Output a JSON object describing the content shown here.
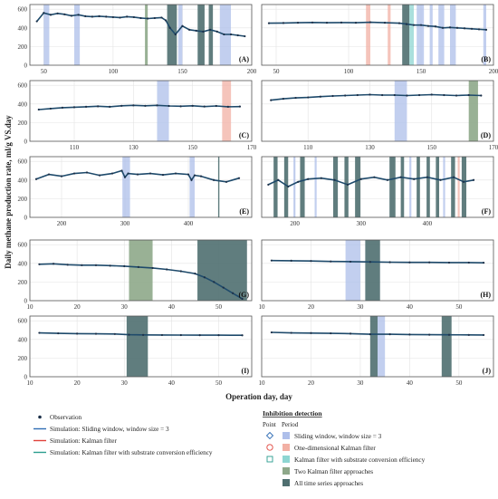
{
  "figure": {
    "ylabel": "Daily methane production rate, ml/g VS.day",
    "xlabel": "Operation day, day",
    "colors": {
      "observation": "#1b2f48",
      "sliding": "#2f6db5",
      "kalman": "#e0423a",
      "substrate": "#2a9d8f",
      "band_sliding": "#aebfea",
      "band_kalman": "#f2b0a4",
      "band_substrate": "#8ed6d2",
      "band_two": "#8ea88a",
      "band_all": "#4f6f70",
      "curve": "#1e4a6b",
      "grid": "#e3e3e3"
    }
  },
  "legend_left": [
    {
      "id": "observation",
      "label": "Observation"
    },
    {
      "id": "sliding",
      "label": "Simulation: Sliding window, window size = 3"
    },
    {
      "id": "kalman",
      "label": "Simulation: Kalman filter"
    },
    {
      "id": "substrate",
      "label": "Simulation: Kalman filter with substrate conversion efficiency"
    }
  ],
  "legend_right": {
    "title": "Inhibition detection",
    "col_point": "Point",
    "col_period": "Period",
    "rows": [
      {
        "id": "sliding",
        "label": "Sliding window, window size = 3",
        "marker": "diamond"
      },
      {
        "id": "kalman",
        "label": "One-dimensional Kalman filter",
        "marker": "circle"
      },
      {
        "id": "substrate",
        "label": "Kalman filter with substrate conversion efficiency",
        "marker": "square"
      },
      {
        "id": "two",
        "label": "Two Kalman filter approaches"
      },
      {
        "id": "all",
        "label": "All time series approaches"
      }
    ]
  },
  "chart_data": [
    {
      "type": "line",
      "panel": "A",
      "xlim": [
        40,
        200
      ],
      "ylim": [
        0,
        650
      ],
      "xticks": [
        50,
        100,
        150,
        200
      ],
      "yticks": [
        0,
        200,
        400,
        600
      ],
      "x": [
        45,
        50,
        55,
        60,
        65,
        70,
        75,
        80,
        85,
        90,
        95,
        100,
        105,
        110,
        115,
        120,
        125,
        130,
        135,
        138,
        141,
        145,
        150,
        155,
        160,
        165,
        170,
        175,
        180,
        185,
        190,
        195
      ],
      "series": [
        {
          "values": [
            470,
            560,
            540,
            555,
            545,
            530,
            540,
            525,
            520,
            525,
            520,
            515,
            510,
            520,
            515,
            505,
            500,
            505,
            510,
            480,
            400,
            330,
            420,
            380,
            370,
            360,
            380,
            360,
            330,
            330,
            320,
            310
          ]
        }
      ],
      "bands": [
        {
          "x0": 50,
          "x1": 54,
          "kind": "sliding"
        },
        {
          "x0": 72,
          "x1": 76,
          "kind": "sliding"
        },
        {
          "x0": 123,
          "x1": 125,
          "kind": "two"
        },
        {
          "x0": 139,
          "x1": 146,
          "kind": "all"
        },
        {
          "x0": 147,
          "x1": 150,
          "kind": "sliding"
        },
        {
          "x0": 161,
          "x1": 166,
          "kind": "all"
        },
        {
          "x0": 169,
          "x1": 172,
          "kind": "all"
        },
        {
          "x0": 177,
          "x1": 185,
          "kind": "sliding"
        }
      ]
    },
    {
      "type": "line",
      "panel": "B",
      "xlim": [
        40,
        200
      ],
      "ylim": [
        0,
        650
      ],
      "xticks": [
        50,
        100,
        150,
        200
      ],
      "yticks": [
        0,
        200,
        400,
        600
      ],
      "x": [
        45,
        55,
        65,
        75,
        85,
        95,
        105,
        115,
        125,
        135,
        140,
        145,
        150,
        155,
        160,
        165,
        170,
        175,
        180,
        185,
        190,
        195
      ],
      "series": [
        {
          "values": [
            450,
            452,
            455,
            458,
            455,
            457,
            455,
            460,
            455,
            450,
            440,
            430,
            430,
            420,
            415,
            400,
            405,
            400,
            395,
            390,
            385,
            380
          ]
        }
      ],
      "bands": [
        {
          "x0": 112,
          "x1": 115,
          "kind": "kalman"
        },
        {
          "x0": 127,
          "x1": 129,
          "kind": "kalman"
        },
        {
          "x0": 137,
          "x1": 142,
          "kind": "all"
        },
        {
          "x0": 142,
          "x1": 145,
          "kind": "substrate"
        },
        {
          "x0": 147,
          "x1": 152,
          "kind": "sliding"
        },
        {
          "x0": 156,
          "x1": 158,
          "kind": "sliding"
        },
        {
          "x0": 162,
          "x1": 166,
          "kind": "sliding"
        },
        {
          "x0": 170,
          "x1": 174,
          "kind": "sliding"
        },
        {
          "x0": 193,
          "x1": 195,
          "kind": "sliding"
        }
      ]
    },
    {
      "type": "line",
      "panel": "C",
      "xlim": [
        95,
        170
      ],
      "ylim": [
        0,
        650
      ],
      "xticks": [
        110,
        130,
        150,
        170
      ],
      "yticks": [
        0,
        200,
        400,
        600
      ],
      "x": [
        98,
        102,
        106,
        110,
        114,
        118,
        122,
        126,
        130,
        134,
        138,
        142,
        146,
        150,
        154,
        158,
        162,
        166
      ],
      "series": [
        {
          "values": [
            340,
            350,
            360,
            365,
            370,
            375,
            370,
            380,
            385,
            380,
            385,
            378,
            375,
            380,
            372,
            378,
            370,
            372
          ]
        }
      ],
      "bands": [
        {
          "x0": 138,
          "x1": 142,
          "kind": "sliding"
        },
        {
          "x0": 160,
          "x1": 163,
          "kind": "kalman"
        }
      ]
    },
    {
      "type": "line",
      "panel": "D",
      "xlim": [
        95,
        170
      ],
      "ylim": [
        0,
        650
      ],
      "xticks": [
        110,
        130,
        150,
        170
      ],
      "yticks": [
        0,
        200,
        400,
        600
      ],
      "x": [
        98,
        102,
        106,
        110,
        114,
        118,
        122,
        126,
        130,
        134,
        138,
        142,
        146,
        150,
        154,
        158,
        162,
        166
      ],
      "series": [
        {
          "values": [
            440,
            455,
            465,
            470,
            478,
            485,
            490,
            495,
            500,
            495,
            495,
            490,
            495,
            500,
            495,
            490,
            495,
            490
          ]
        }
      ],
      "bands": [
        {
          "x0": 138,
          "x1": 142,
          "kind": "sliding"
        },
        {
          "x0": 162,
          "x1": 165,
          "kind": "two"
        }
      ]
    },
    {
      "type": "line",
      "panel": "E",
      "xlim": [
        150,
        500
      ],
      "ylim": [
        0,
        650
      ],
      "xticks": [
        200,
        300,
        400
      ],
      "yticks": [
        0,
        200,
        400,
        600
      ],
      "x": [
        160,
        180,
        200,
        220,
        240,
        260,
        280,
        295,
        300,
        305,
        320,
        340,
        360,
        380,
        400,
        405,
        410,
        420,
        440,
        460,
        480
      ],
      "series": [
        {
          "values": [
            410,
            460,
            440,
            470,
            480,
            450,
            470,
            500,
            430,
            470,
            460,
            470,
            455,
            470,
            460,
            400,
            450,
            440,
            400,
            380,
            420
          ]
        }
      ],
      "bands": [
        {
          "x0": 296,
          "x1": 308,
          "kind": "sliding"
        },
        {
          "x0": 402,
          "x1": 410,
          "kind": "sliding"
        },
        {
          "x0": 447,
          "x1": 449,
          "kind": "all"
        }
      ]
    },
    {
      "type": "line",
      "panel": "F",
      "xlim": [
        150,
        500
      ],
      "ylim": [
        0,
        650
      ],
      "xticks": [
        200,
        300,
        400
      ],
      "yticks": [
        0,
        200,
        400,
        600
      ],
      "x": [
        160,
        175,
        190,
        205,
        220,
        240,
        260,
        280,
        300,
        320,
        340,
        360,
        380,
        400,
        420,
        440,
        455,
        470
      ],
      "series": [
        {
          "values": [
            350,
            400,
            330,
            380,
            410,
            420,
            400,
            350,
            410,
            430,
            400,
            430,
            410,
            430,
            400,
            430,
            380,
            400
          ]
        }
      ],
      "bands": [
        {
          "x0": 168,
          "x1": 174,
          "kind": "all"
        },
        {
          "x0": 184,
          "x1": 190,
          "kind": "all"
        },
        {
          "x0": 198,
          "x1": 201,
          "kind": "sliding"
        },
        {
          "x0": 208,
          "x1": 215,
          "kind": "all"
        },
        {
          "x0": 230,
          "x1": 233,
          "kind": "sliding"
        },
        {
          "x0": 258,
          "x1": 265,
          "kind": "all"
        },
        {
          "x0": 275,
          "x1": 281,
          "kind": "all"
        },
        {
          "x0": 291,
          "x1": 299,
          "kind": "all"
        },
        {
          "x0": 343,
          "x1": 352,
          "kind": "all"
        },
        {
          "x0": 360,
          "x1": 365,
          "kind": "all"
        },
        {
          "x0": 373,
          "x1": 376,
          "kind": "sliding"
        },
        {
          "x0": 384,
          "x1": 389,
          "kind": "all"
        },
        {
          "x0": 399,
          "x1": 404,
          "kind": "all"
        },
        {
          "x0": 413,
          "x1": 418,
          "kind": "all"
        },
        {
          "x0": 424,
          "x1": 427,
          "kind": "sliding"
        },
        {
          "x0": 436,
          "x1": 442,
          "kind": "all"
        },
        {
          "x0": 446,
          "x1": 449,
          "kind": "kalman"
        },
        {
          "x0": 452,
          "x1": 459,
          "kind": "all"
        }
      ]
    },
    {
      "type": "line",
      "panel": "G",
      "xlim": [
        10,
        57
      ],
      "ylim": [
        0,
        650
      ],
      "xticks": [
        10,
        20,
        30,
        40,
        50
      ],
      "yticks": [
        0,
        200,
        400,
        600
      ],
      "x": [
        12,
        15,
        18,
        21,
        24,
        27,
        30,
        33,
        36,
        39,
        42,
        45,
        47,
        49,
        51,
        53,
        55
      ],
      "series": [
        {
          "values": [
            390,
            395,
            385,
            380,
            380,
            375,
            370,
            360,
            350,
            335,
            315,
            290,
            250,
            200,
            140,
            80,
            20
          ]
        }
      ],
      "bands": [
        {
          "x0": 31,
          "x1": 36,
          "kind": "two"
        },
        {
          "x0": 45.5,
          "x1": 56,
          "kind": "all"
        }
      ]
    },
    {
      "type": "line",
      "panel": "H",
      "xlim": [
        10,
        57
      ],
      "ylim": [
        0,
        650
      ],
      "xticks": [
        10,
        20,
        30,
        40,
        50
      ],
      "yticks": [
        0,
        200,
        400,
        600
      ],
      "x": [
        12,
        16,
        20,
        24,
        28,
        32,
        36,
        40,
        44,
        48,
        52,
        55
      ],
      "series": [
        {
          "values": [
            430,
            428,
            425,
            420,
            418,
            415,
            412,
            410,
            410,
            408,
            408,
            406
          ]
        }
      ],
      "bands": [
        {
          "x0": 27,
          "x1": 30,
          "kind": "sliding"
        },
        {
          "x0": 31,
          "x1": 34,
          "kind": "all"
        }
      ]
    },
    {
      "type": "line",
      "panel": "I",
      "xlim": [
        10,
        57
      ],
      "ylim": [
        0,
        650
      ],
      "xticks": [
        10,
        20,
        30,
        40,
        50
      ],
      "yticks": [
        0,
        200,
        400,
        600
      ],
      "x": [
        12,
        16,
        20,
        24,
        28,
        31,
        34,
        38,
        42,
        46,
        50,
        55
      ],
      "series": [
        {
          "values": [
            470,
            465,
            462,
            460,
            458,
            450,
            448,
            447,
            446,
            445,
            445,
            444
          ]
        }
      ],
      "bands": [
        {
          "x0": 30.5,
          "x1": 35,
          "kind": "all"
        }
      ]
    },
    {
      "type": "line",
      "panel": "J",
      "xlim": [
        10,
        57
      ],
      "ylim": [
        0,
        650
      ],
      "xticks": [
        10,
        20,
        30,
        40,
        50
      ],
      "yticks": [
        0,
        200,
        400,
        600
      ],
      "x": [
        12,
        16,
        20,
        24,
        28,
        32,
        36,
        40,
        44,
        48,
        52,
        55
      ],
      "series": [
        {
          "values": [
            475,
            470,
            468,
            465,
            462,
            455,
            455,
            452,
            450,
            449,
            448,
            447
          ]
        }
      ],
      "bands": [
        {
          "x0": 32,
          "x1": 33.5,
          "kind": "all"
        },
        {
          "x0": 33.5,
          "x1": 35,
          "kind": "sliding"
        },
        {
          "x0": 46.5,
          "x1": 48.5,
          "kind": "all"
        }
      ]
    }
  ]
}
